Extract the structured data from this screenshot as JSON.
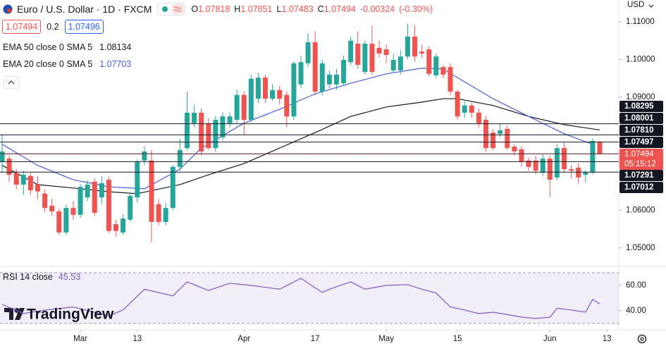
{
  "chart_data": [
    {
      "type": "candlestick",
      "title": "Euro / U.S. Dollar · 1D · FXCM",
      "ohlc": [
        {
          "label": "O",
          "value": 1.07818
        },
        {
          "label": "H",
          "value": 1.07851
        },
        {
          "label": "L",
          "value": 1.07483
        },
        {
          "label": "C",
          "value": 1.07494
        }
      ],
      "change": -0.00324,
      "change_percent": "(-0.30%)",
      "sell": 1.07494,
      "spread": 0.2,
      "buy": 1.07496,
      "currency": "USD",
      "up_color": "#26a69a",
      "down_color": "#ef5350",
      "open": [
        1.0728,
        1.0737,
        1.0699,
        1.0668,
        1.0691,
        1.0668,
        1.0644,
        1.0612,
        1.0597,
        1.0541,
        1.0606,
        1.0588,
        1.0634,
        1.0676,
        1.0634,
        1.0681,
        1.0563,
        1.0541,
        1.0575,
        1.0634,
        1.0732,
        1.0732,
        1.0616,
        1.0569,
        1.0606,
        1.0715,
        1.0765,
        1.0831,
        1.0859,
        1.0831,
        1.0765,
        1.0793,
        1.0831,
        1.084,
        1.0906,
        1.084,
        1.0896,
        1.0952,
        1.0896,
        1.0919,
        1.0906,
        1.0849,
        1.0934,
        1.099,
        1.1046,
        1.0915,
        1.0934,
        1.0934,
        1.0937,
        1.0993,
        1.1042,
        1.0967,
        1.1042,
        1.1031,
        1.1027,
        1.0971,
        1.0971,
        1.1008,
        1.1061,
        1.1021,
        1.1027,
        1.0958,
        1.098,
        1.098,
        1.0915,
        1.0859,
        1.0878,
        1.0859,
        1.084,
        1.0806,
        1.0803,
        1.0816,
        1.0769,
        1.0762,
        1.0732,
        1.0732,
        1.07,
        1.0737,
        1.0687,
        1.0765,
        1.0709,
        1.0713,
        1.0694,
        1.07,
        1.07818
      ],
      "high": [
        1.08,
        1.0745,
        1.071,
        1.0705,
        1.07,
        1.069,
        1.0655,
        1.063,
        1.0605,
        1.0615,
        1.0625,
        1.067,
        1.068,
        1.0685,
        1.069,
        1.069,
        1.0575,
        1.059,
        1.0645,
        1.0735,
        1.077,
        1.076,
        1.063,
        1.062,
        1.072,
        1.079,
        1.0915,
        1.088,
        1.087,
        1.0845,
        1.085,
        1.086,
        1.086,
        1.092,
        1.0915,
        1.096,
        1.0965,
        1.096,
        1.0935,
        1.093,
        1.0915,
        1.0995,
        1.101,
        1.107,
        1.1075,
        1.1,
        1.097,
        1.0975,
        1.101,
        1.106,
        1.1075,
        1.105,
        1.109,
        1.105,
        1.104,
        1.1015,
        1.1025,
        1.1095,
        1.109,
        1.104,
        1.1035,
        1.1015,
        1.0985,
        1.099,
        1.092,
        1.089,
        1.0885,
        1.087,
        1.085,
        1.0815,
        1.083,
        1.0825,
        1.0775,
        1.077,
        1.074,
        1.0745,
        1.075,
        1.0745,
        1.0775,
        1.078,
        1.072,
        1.0725,
        1.0705,
        1.079,
        1.07851
      ],
      "low": [
        1.07,
        1.0675,
        1.0655,
        1.064,
        1.064,
        1.063,
        1.0595,
        1.0585,
        1.0535,
        1.0535,
        1.0575,
        1.058,
        1.0625,
        1.0585,
        1.0615,
        1.054,
        1.053,
        1.0535,
        1.057,
        1.062,
        1.072,
        1.0515,
        1.056,
        1.056,
        1.06,
        1.0705,
        1.076,
        1.082,
        1.0745,
        1.076,
        1.0755,
        1.0785,
        1.082,
        1.083,
        1.08,
        1.0835,
        1.0885,
        1.0885,
        1.089,
        1.088,
        1.082,
        1.084,
        1.0925,
        1.098,
        1.0905,
        1.0905,
        1.0925,
        1.092,
        1.093,
        1.0985,
        1.0975,
        1.096,
        1.096,
        1.1005,
        1.099,
        1.0965,
        1.096,
        1.1,
        1.0995,
        1.1005,
        1.0955,
        1.095,
        1.095,
        1.0905,
        1.084,
        1.0845,
        1.0845,
        1.082,
        1.0755,
        1.076,
        1.0795,
        1.076,
        1.0745,
        1.0715,
        1.0705,
        1.0695,
        1.069,
        1.0635,
        1.068,
        1.07,
        1.0685,
        1.067,
        1.0675,
        1.0695,
        1.07483
      ],
      "close": [
        1.0756,
        1.0694,
        1.0668,
        1.0694,
        1.0653,
        1.065,
        1.0606,
        1.0597,
        1.0541,
        1.0606,
        1.0588,
        1.0662,
        1.0668,
        1.0593,
        1.0672,
        1.0545,
        1.0545,
        1.0578,
        1.0638,
        1.0728,
        1.0756,
        1.0569,
        1.0569,
        1.0606,
        1.0715,
        1.076,
        1.0859,
        1.0859,
        1.0756,
        1.0765,
        1.084,
        1.0849,
        1.0849,
        1.0906,
        1.084,
        1.0949,
        1.0952,
        1.0896,
        1.0919,
        1.0896,
        1.0849,
        1.099,
        1.0993,
        1.1046,
        1.0915,
        1.099,
        1.096,
        1.096,
        1.0999,
        1.105,
        1.0986,
        1.1042,
        1.0967,
        1.1016,
        1.1012,
        1.0999,
        1.1008,
        1.1061,
        1.1008,
        1.1016,
        1.0962,
        1.1008,
        1.096,
        1.0915,
        1.0849,
        1.0878,
        1.0859,
        1.0831,
        1.0765,
        1.0765,
        1.0812,
        1.0765,
        1.0756,
        1.0728,
        1.0715,
        1.0705,
        1.0737,
        1.0681,
        1.0765,
        1.0709,
        1.0705,
        1.0687,
        1.07,
        1.0784,
        1.07494
      ],
      "series": [
        {
          "name": "EMA 50 close 0 SMA 5",
          "color": "#131722",
          "last_value": 1.08134,
          "x": [
            0,
            5,
            10,
            15,
            19,
            25,
            29,
            34,
            39,
            44,
            49,
            54,
            59,
            62,
            64,
            69,
            74,
            79,
            84
          ],
          "values": [
            1.0719,
            1.0668,
            1.0659,
            1.0649,
            1.0644,
            1.0668,
            1.0694,
            1.0724,
            1.0765,
            1.0806,
            1.0849,
            1.0874,
            1.0887,
            1.0896,
            1.0896,
            1.0878,
            1.0849,
            1.0827,
            1.0813
          ]
        },
        {
          "name": "EMA 20 close 0 SMA 5",
          "color": "#4a5ddb",
          "last_value": 1.07703,
          "x": [
            0,
            5,
            10,
            15,
            20,
            25,
            28,
            34,
            39,
            44,
            49,
            54,
            59,
            62,
            64,
            69,
            74,
            79,
            83
          ],
          "values": [
            1.0775,
            1.0719,
            1.0681,
            1.0662,
            1.0657,
            1.0709,
            1.0765,
            1.0831,
            1.0868,
            1.0909,
            1.0937,
            1.0962,
            1.0977,
            1.0975,
            1.0952,
            1.0896,
            1.0849,
            1.0803,
            1.0775
          ]
        }
      ],
      "levels": [
        1.08295,
        1.08001,
        {
          "value": 1.0781,
          "label": "1.07810"
        },
        1.07497,
        1.07291,
        1.07012
      ],
      "last_price": 1.07494,
      "countdown": "05:15:12",
      "ylim": [
        1.0451,
        1.1158
      ],
      "yticks": [
        {
          "value": 1.11,
          "label": "1.11000"
        },
        {
          "value": 1.1,
          "label": "1.10000"
        },
        {
          "value": 1.09,
          "label": "1.09000"
        },
        {
          "value": 1.06,
          "label": "1.06000"
        },
        {
          "value": 1.05,
          "label": "1.05000"
        }
      ],
      "xticks": [
        {
          "value": 11,
          "label": "Mar"
        },
        {
          "value": 19,
          "label": "13"
        },
        {
          "value": 34,
          "label": "Apr"
        },
        {
          "value": 44,
          "label": "17"
        },
        {
          "value": 54,
          "label": "May"
        },
        {
          "value": 64,
          "label": "15"
        },
        {
          "value": 77,
          "label": "Jun"
        },
        {
          "value": 85,
          "label": "13"
        }
      ]
    },
    {
      "type": "line",
      "title": "RSI 14 close",
      "last_value": 45.53,
      "color": "#7e57c2",
      "x": [
        0,
        3,
        6,
        10,
        15,
        17,
        20,
        24,
        26,
        29,
        32,
        35,
        39,
        42,
        45,
        46,
        49,
        51,
        54,
        57,
        59,
        61,
        63,
        65,
        67,
        69,
        71,
        73,
        75,
        77,
        78,
        80,
        82,
        83,
        84
      ],
      "values": [
        45,
        37.8,
        40.6,
        43,
        36,
        40.6,
        57,
        51.7,
        62.8,
        56,
        61.7,
        60,
        57,
        65.6,
        54.4,
        57,
        62.8,
        57,
        60,
        60.6,
        57,
        54,
        43,
        40.6,
        37.8,
        38.9,
        37,
        35,
        33.9,
        35,
        42,
        40.6,
        38.9,
        48.9,
        45.5
      ],
      "levels": [
        70,
        30
      ],
      "ylim": [
        25,
        75
      ],
      "yticks": [
        {
          "value": 60,
          "label": "60.00"
        },
        {
          "value": 40,
          "label": "40.00"
        }
      ]
    }
  ],
  "branding": {
    "logo": "TradingView"
  }
}
